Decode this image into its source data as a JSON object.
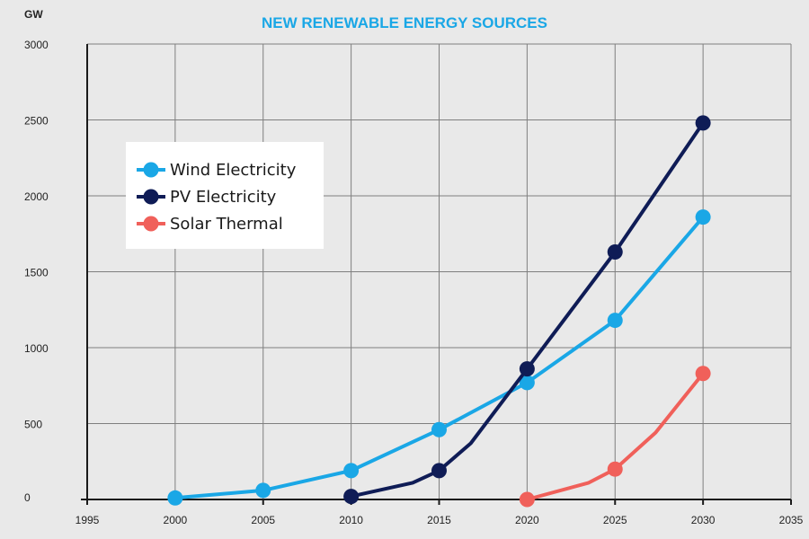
{
  "chart_data": {
    "type": "line",
    "title": "NEW RENEWABLE ENERGY SOURCES",
    "ylabel": "GW",
    "xlabel": "",
    "xlim": [
      1995,
      2035
    ],
    "ylim": [
      0,
      3000
    ],
    "xticks": [
      1995,
      2000,
      2005,
      2010,
      2015,
      2020,
      2025,
      2030,
      2035
    ],
    "yticks": [
      0,
      500,
      1000,
      1500,
      2000,
      2500,
      3000
    ],
    "grid": true,
    "legend_position": "upper-left",
    "series": [
      {
        "name": "Wind Electricity",
        "color": "#1aa7e6",
        "points": [
          [
            2000,
            10
          ],
          [
            2005,
            60
          ],
          [
            2010,
            190
          ],
          [
            2015,
            460
          ],
          [
            2020,
            770
          ],
          [
            2025,
            1180
          ],
          [
            2030,
            1860
          ]
        ],
        "markers": [
          [
            2000,
            10
          ],
          [
            2005,
            60
          ],
          [
            2010,
            190
          ],
          [
            2015,
            460
          ],
          [
            2020,
            770
          ],
          [
            2025,
            1180
          ],
          [
            2030,
            1860
          ]
        ]
      },
      {
        "name": "PV Electricity",
        "color": "#0f1c56",
        "points": [
          [
            2010,
            20
          ],
          [
            2013.5,
            110
          ],
          [
            2015,
            190
          ],
          [
            2016.8,
            370
          ],
          [
            2020,
            860
          ],
          [
            2025,
            1630
          ],
          [
            2030,
            2480
          ]
        ],
        "markers": [
          [
            2010,
            20
          ],
          [
            2015,
            190
          ],
          [
            2020,
            860
          ],
          [
            2025,
            1630
          ],
          [
            2030,
            2480
          ]
        ]
      },
      {
        "name": "Solar Thermal",
        "color": "#f0605a",
        "points": [
          [
            2020,
            0
          ],
          [
            2023.5,
            110
          ],
          [
            2025,
            200
          ],
          [
            2027.3,
            440
          ],
          [
            2030,
            830
          ]
        ],
        "markers": [
          [
            2020,
            0
          ],
          [
            2025,
            200
          ],
          [
            2030,
            830
          ]
        ]
      }
    ],
    "title_color": "#1aa7e6"
  }
}
